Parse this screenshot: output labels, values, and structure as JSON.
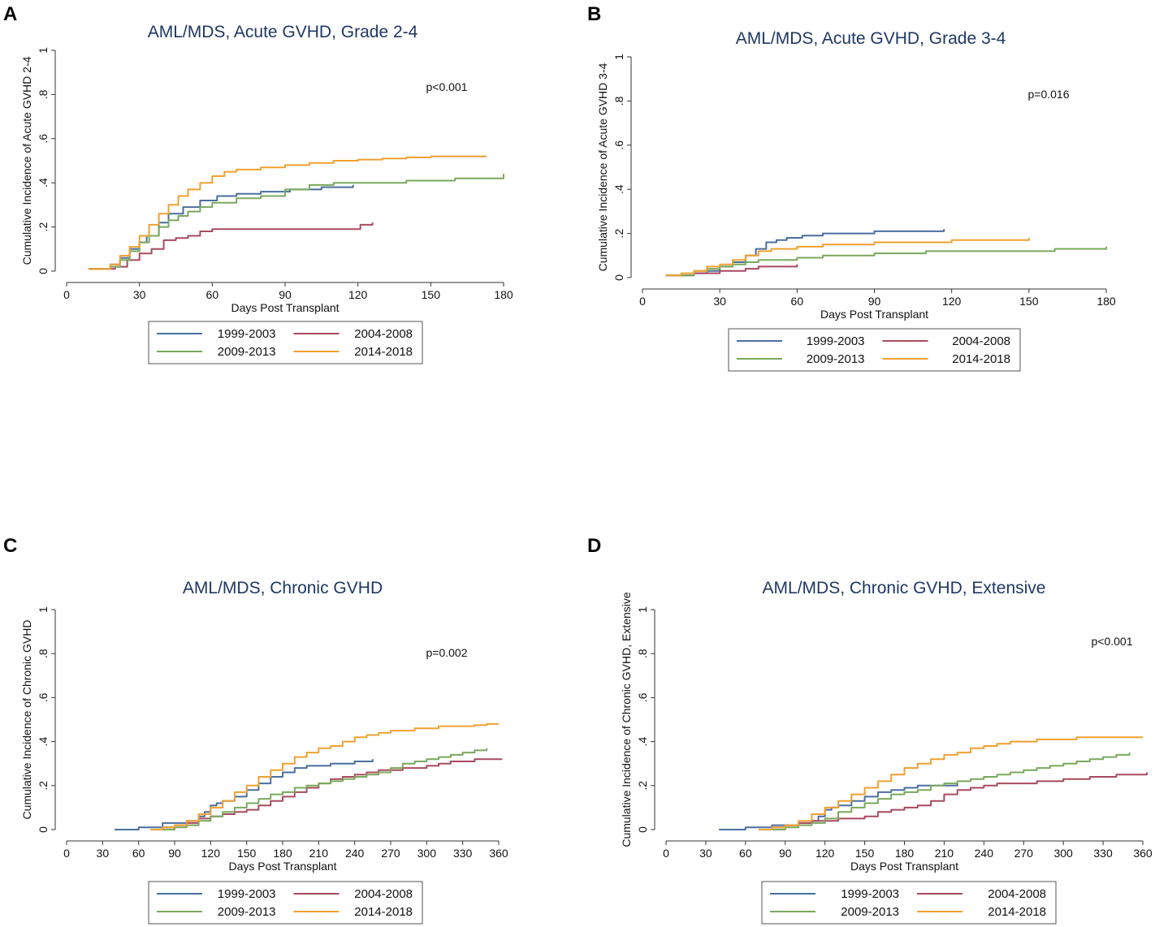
{
  "colors": {
    "1999-2003": "#4a6f9e",
    "2004-2008": "#a84a5e",
    "2009-2013": "#7aa85c",
    "2014-2018": "#f0a030"
  },
  "chart_data": [
    {
      "panel": "A",
      "type": "line",
      "title": "AML/MDS, Acute GVHD, Grade 2-4",
      "xlabel": "Days Post Transplant",
      "ylabel": "Cumulative Incidence of Acute GVHD 2-4",
      "xlim": [
        0,
        180
      ],
      "ylim": [
        0,
        1
      ],
      "xticks": [
        "0",
        "30",
        "60",
        "90",
        "120",
        "150",
        "180"
      ],
      "yticks": [
        "0",
        ".2",
        ".4",
        ".6",
        ".8",
        "1"
      ],
      "pvalue": "p<0.001",
      "legend": [
        "1999-2003",
        "2004-2008",
        "2009-2013",
        "2014-2018"
      ],
      "series": [
        {
          "name": "1999-2003",
          "x": [
            9,
            14,
            18,
            22,
            26,
            30,
            33,
            38,
            42,
            48,
            55,
            62,
            70,
            80,
            92,
            105,
            118
          ],
          "y": [
            0.01,
            0.01,
            0.03,
            0.06,
            0.1,
            0.13,
            0.16,
            0.22,
            0.26,
            0.29,
            0.32,
            0.34,
            0.35,
            0.36,
            0.37,
            0.38,
            0.39
          ]
        },
        {
          "name": "2004-2008",
          "x": [
            9,
            14,
            20,
            25,
            30,
            35,
            40,
            45,
            50,
            55,
            60,
            70,
            80,
            90,
            100,
            110,
            118,
            121,
            126
          ],
          "y": [
            0.01,
            0.01,
            0.02,
            0.05,
            0.08,
            0.1,
            0.14,
            0.15,
            0.16,
            0.18,
            0.19,
            0.19,
            0.19,
            0.19,
            0.19,
            0.19,
            0.19,
            0.21,
            0.22
          ]
        },
        {
          "name": "2009-2013",
          "x": [
            9,
            14,
            18,
            22,
            26,
            30,
            34,
            38,
            42,
            46,
            50,
            55,
            60,
            70,
            80,
            90,
            100,
            110,
            120,
            140,
            160,
            180
          ],
          "y": [
            0.01,
            0.01,
            0.02,
            0.05,
            0.09,
            0.13,
            0.16,
            0.2,
            0.23,
            0.25,
            0.27,
            0.29,
            0.31,
            0.33,
            0.34,
            0.37,
            0.39,
            0.4,
            0.4,
            0.41,
            0.42,
            0.44
          ]
        },
        {
          "name": "2014-2018",
          "x": [
            9,
            14,
            18,
            22,
            26,
            30,
            34,
            38,
            42,
            46,
            50,
            55,
            60,
            65,
            70,
            80,
            90,
            100,
            110,
            120,
            130,
            140,
            150,
            160,
            170,
            173
          ],
          "y": [
            0.01,
            0.01,
            0.03,
            0.07,
            0.11,
            0.16,
            0.21,
            0.26,
            0.3,
            0.34,
            0.37,
            0.4,
            0.43,
            0.45,
            0.46,
            0.47,
            0.48,
            0.49,
            0.5,
            0.505,
            0.51,
            0.515,
            0.52,
            0.52,
            0.52,
            0.52
          ]
        }
      ]
    },
    {
      "panel": "B",
      "type": "line",
      "title": "AML/MDS, Acute GVHD, Grade 3-4",
      "xlabel": "Days Post Transplant",
      "ylabel": "Cumulative Incidence of Acute GVHD 3-4",
      "xlim": [
        0,
        180
      ],
      "ylim": [
        0,
        1
      ],
      "xticks": [
        "0",
        "30",
        "60",
        "90",
        "120",
        "150",
        "180"
      ],
      "yticks": [
        "0",
        ".2",
        ".4",
        ".6",
        ".8",
        "1"
      ],
      "pvalue": "p=0.016",
      "legend": [
        "1999-2003",
        "2004-2008",
        "2009-2013",
        "2014-2018"
      ],
      "series": [
        {
          "name": "1999-2003",
          "x": [
            9,
            15,
            20,
            25,
            30,
            35,
            40,
            44,
            48,
            52,
            56,
            62,
            70,
            80,
            90,
            100,
            110,
            117
          ],
          "y": [
            0.01,
            0.01,
            0.02,
            0.03,
            0.05,
            0.07,
            0.1,
            0.13,
            0.16,
            0.17,
            0.18,
            0.19,
            0.2,
            0.2,
            0.21,
            0.21,
            0.21,
            0.22
          ]
        },
        {
          "name": "2004-2008",
          "x": [
            9,
            15,
            20,
            25,
            30,
            35,
            40,
            45,
            50,
            55,
            60
          ],
          "y": [
            0.01,
            0.01,
            0.02,
            0.02,
            0.03,
            0.03,
            0.04,
            0.05,
            0.05,
            0.05,
            0.06
          ]
        },
        {
          "name": "2009-2013",
          "x": [
            9,
            15,
            20,
            25,
            30,
            35,
            40,
            45,
            50,
            60,
            70,
            80,
            90,
            100,
            110,
            120,
            140,
            160,
            180
          ],
          "y": [
            0.01,
            0.01,
            0.03,
            0.04,
            0.05,
            0.06,
            0.07,
            0.08,
            0.08,
            0.09,
            0.1,
            0.1,
            0.11,
            0.11,
            0.12,
            0.12,
            0.12,
            0.13,
            0.14
          ]
        },
        {
          "name": "2014-2018",
          "x": [
            9,
            15,
            20,
            25,
            30,
            35,
            40,
            45,
            50,
            60,
            70,
            80,
            90,
            100,
            110,
            120,
            130,
            140,
            150
          ],
          "y": [
            0.01,
            0.02,
            0.03,
            0.05,
            0.06,
            0.08,
            0.1,
            0.12,
            0.13,
            0.14,
            0.15,
            0.15,
            0.16,
            0.16,
            0.16,
            0.17,
            0.17,
            0.17,
            0.18
          ]
        }
      ]
    },
    {
      "panel": "C",
      "type": "line",
      "title": "AML/MDS, Chronic GVHD",
      "xlabel": "Days Post Transplant",
      "ylabel": "Cumulative Incidence of Chronic GVHD",
      "xlim": [
        0,
        360
      ],
      "ylim": [
        0,
        1
      ],
      "xticks": [
        "0",
        "30",
        "60",
        "90",
        "120",
        "150",
        "180",
        "210",
        "240",
        "270",
        "300",
        "330",
        "360"
      ],
      "yticks": [
        "0",
        ".2",
        ".4",
        ".6",
        ".8",
        "1"
      ],
      "pvalue": "p=0.002",
      "legend": [
        "1999-2003",
        "2004-2008",
        "2009-2013",
        "2014-2018"
      ],
      "series": [
        {
          "name": "1999-2003",
          "x": [
            40,
            50,
            60,
            70,
            80,
            90,
            100,
            110,
            115,
            120,
            125,
            130,
            140,
            150,
            160,
            170,
            180,
            190,
            200,
            210,
            220,
            230,
            240,
            250,
            255
          ],
          "y": [
            0.0,
            0.0,
            0.01,
            0.01,
            0.03,
            0.03,
            0.04,
            0.06,
            0.08,
            0.11,
            0.12,
            0.13,
            0.15,
            0.18,
            0.21,
            0.24,
            0.26,
            0.28,
            0.29,
            0.29,
            0.3,
            0.3,
            0.31,
            0.31,
            0.32
          ]
        },
        {
          "name": "2004-2008",
          "x": [
            70,
            80,
            90,
            100,
            110,
            120,
            130,
            140,
            150,
            160,
            170,
            180,
            190,
            200,
            210,
            220,
            230,
            240,
            250,
            260,
            270,
            280,
            290,
            300,
            310,
            320,
            330,
            340,
            350,
            363
          ],
          "y": [
            0.0,
            0.01,
            0.02,
            0.03,
            0.05,
            0.06,
            0.07,
            0.08,
            0.09,
            0.11,
            0.13,
            0.15,
            0.17,
            0.19,
            0.21,
            0.23,
            0.24,
            0.25,
            0.26,
            0.27,
            0.27,
            0.28,
            0.28,
            0.29,
            0.3,
            0.31,
            0.31,
            0.32,
            0.32,
            0.32
          ]
        },
        {
          "name": "2009-2013",
          "x": [
            70,
            80,
            90,
            100,
            110,
            120,
            130,
            140,
            150,
            160,
            170,
            180,
            190,
            200,
            210,
            220,
            230,
            240,
            250,
            260,
            270,
            280,
            290,
            300,
            310,
            320,
            330,
            340,
            350
          ],
          "y": [
            0.0,
            0.0,
            0.01,
            0.02,
            0.04,
            0.06,
            0.08,
            0.1,
            0.12,
            0.14,
            0.16,
            0.17,
            0.19,
            0.2,
            0.21,
            0.22,
            0.23,
            0.24,
            0.25,
            0.26,
            0.28,
            0.3,
            0.31,
            0.32,
            0.33,
            0.34,
            0.35,
            0.36,
            0.37
          ]
        },
        {
          "name": "2014-2018",
          "x": [
            70,
            80,
            90,
            100,
            110,
            120,
            130,
            140,
            150,
            160,
            170,
            180,
            190,
            200,
            210,
            220,
            230,
            240,
            250,
            260,
            270,
            280,
            290,
            300,
            310,
            320,
            330,
            340,
            350,
            360
          ],
          "y": [
            0.0,
            0.01,
            0.02,
            0.04,
            0.07,
            0.1,
            0.13,
            0.17,
            0.2,
            0.24,
            0.27,
            0.3,
            0.33,
            0.35,
            0.37,
            0.38,
            0.4,
            0.42,
            0.43,
            0.44,
            0.45,
            0.45,
            0.46,
            0.46,
            0.47,
            0.47,
            0.47,
            0.475,
            0.48,
            0.48
          ]
        }
      ]
    },
    {
      "panel": "D",
      "type": "line",
      "title": "AML/MDS, Chronic GVHD, Extensive",
      "xlabel": "Days Post Transplant",
      "ylabel": "Cumulative Incidence of Chronic GVHD, Extensive",
      "xlim": [
        0,
        360
      ],
      "ylim": [
        0,
        1
      ],
      "xticks": [
        "0",
        "30",
        "60",
        "90",
        "120",
        "150",
        "180",
        "210",
        "240",
        "270",
        "300",
        "330",
        "360"
      ],
      "yticks": [
        "0",
        ".2",
        ".4",
        ".6",
        ".8",
        "1"
      ],
      "pvalue": "p<0.001",
      "legend": [
        "1999-2003",
        "2004-2008",
        "2009-2013",
        "2014-2018"
      ],
      "series": [
        {
          "name": "1999-2003",
          "x": [
            40,
            50,
            60,
            70,
            80,
            90,
            100,
            110,
            115,
            120,
            125,
            130,
            140,
            150,
            160,
            170,
            180,
            190,
            200,
            210,
            220
          ],
          "y": [
            0.0,
            0.0,
            0.01,
            0.01,
            0.02,
            0.02,
            0.03,
            0.04,
            0.06,
            0.09,
            0.1,
            0.11,
            0.13,
            0.15,
            0.17,
            0.18,
            0.19,
            0.2,
            0.2,
            0.2,
            0.21
          ]
        },
        {
          "name": "2004-2008",
          "x": [
            70,
            80,
            90,
            100,
            110,
            120,
            130,
            140,
            150,
            160,
            170,
            180,
            190,
            200,
            210,
            220,
            230,
            240,
            250,
            260,
            270,
            280,
            290,
            300,
            310,
            320,
            330,
            340,
            350,
            363
          ],
          "y": [
            0.0,
            0.01,
            0.02,
            0.03,
            0.04,
            0.04,
            0.05,
            0.05,
            0.06,
            0.08,
            0.09,
            0.1,
            0.11,
            0.13,
            0.16,
            0.18,
            0.19,
            0.2,
            0.21,
            0.21,
            0.21,
            0.22,
            0.22,
            0.23,
            0.23,
            0.24,
            0.24,
            0.25,
            0.25,
            0.26
          ]
        },
        {
          "name": "2009-2013",
          "x": [
            70,
            80,
            90,
            100,
            110,
            120,
            130,
            140,
            150,
            160,
            170,
            180,
            190,
            200,
            210,
            220,
            230,
            240,
            250,
            260,
            270,
            280,
            290,
            300,
            310,
            320,
            330,
            340,
            350
          ],
          "y": [
            0.0,
            0.0,
            0.01,
            0.02,
            0.03,
            0.05,
            0.08,
            0.1,
            0.12,
            0.14,
            0.16,
            0.17,
            0.18,
            0.2,
            0.21,
            0.22,
            0.23,
            0.24,
            0.25,
            0.26,
            0.27,
            0.28,
            0.29,
            0.3,
            0.31,
            0.32,
            0.33,
            0.34,
            0.35
          ]
        },
        {
          "name": "2014-2018",
          "x": [
            70,
            80,
            90,
            100,
            110,
            120,
            130,
            140,
            150,
            160,
            170,
            180,
            190,
            200,
            210,
            220,
            230,
            240,
            250,
            260,
            270,
            280,
            290,
            300,
            310,
            320,
            330,
            340,
            350,
            360
          ],
          "y": [
            0.0,
            0.01,
            0.02,
            0.04,
            0.07,
            0.1,
            0.13,
            0.16,
            0.19,
            0.22,
            0.25,
            0.28,
            0.3,
            0.32,
            0.34,
            0.35,
            0.37,
            0.38,
            0.39,
            0.4,
            0.4,
            0.41,
            0.41,
            0.41,
            0.42,
            0.42,
            0.42,
            0.42,
            0.42,
            0.42
          ]
        }
      ]
    }
  ]
}
